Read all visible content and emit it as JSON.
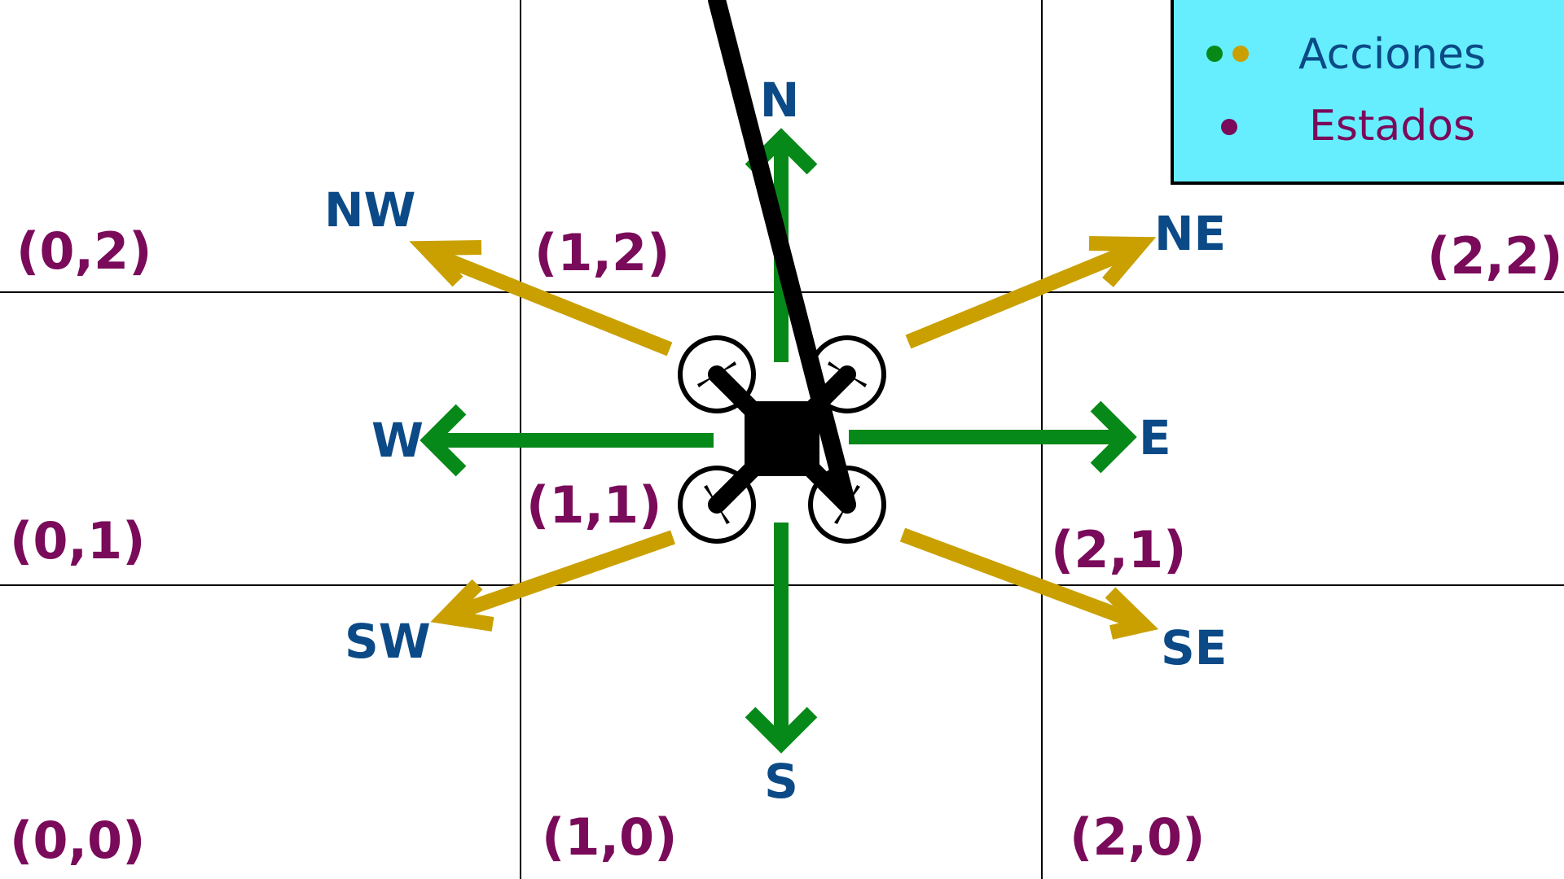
{
  "colors": {
    "state": "#7a0a5a",
    "direction": "#0b4a86",
    "cardinal_arrow": "#07891a",
    "diagonal_arrow": "#c9a000",
    "legend_bg": "#66eeff",
    "grid": "#000000",
    "drone": "#000000"
  },
  "legend": {
    "actions_label": "Acciones",
    "states_label": "Estados"
  },
  "states": {
    "s00": "(0,0)",
    "s01": "(0,1)",
    "s02": "(0,2)",
    "s10": "(1,0)",
    "s11": "(1,1)",
    "s12": "(1,2)",
    "s20": "(2,0)",
    "s21": "(2,1)",
    "s22": "(2,2)"
  },
  "directions": {
    "N": "N",
    "S": "S",
    "E": "E",
    "W": "W",
    "NE": "NE",
    "NW": "NW",
    "SE": "SE",
    "SW": "SW"
  },
  "icons": {
    "drone": "quadcopter-drone-icon"
  }
}
